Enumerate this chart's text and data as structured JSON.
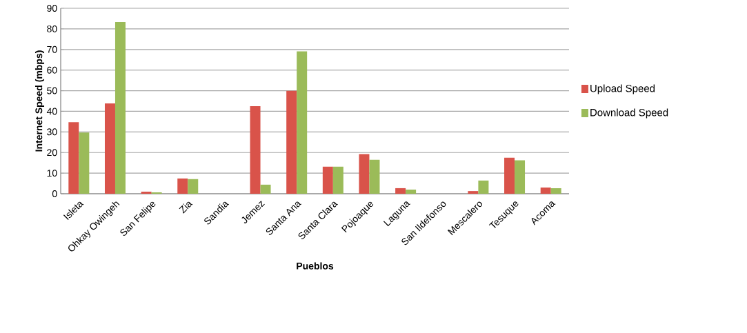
{
  "chart_data": {
    "type": "bar",
    "xlabel": "Pueblos",
    "ylabel": "Internet Speed (mbps)",
    "categories": [
      "Isleta",
      "Ohkay Owingeh",
      "San Felipe",
      "Zia",
      "Sandia",
      "Jemez",
      "Santa Ana",
      "Santa Clara",
      "Pojoaque",
      "Laguna",
      "San Ildefonso",
      "Mescalero",
      "Tesuque",
      "Acoma"
    ],
    "series": [
      {
        "name": "Upload Speed",
        "color": "#d9534a",
        "values": [
          34.7,
          43.8,
          1.0,
          7.4,
          0,
          42.5,
          50,
          13.1,
          19.2,
          2.7,
          0,
          1.3,
          17.5,
          3.0
        ]
      },
      {
        "name": "Download Speed",
        "color": "#9bbb59",
        "values": [
          29.7,
          83.3,
          0.7,
          7.1,
          0,
          4.4,
          69.1,
          13.1,
          16.5,
          2.0,
          0,
          6.4,
          16.2,
          2.7
        ]
      }
    ],
    "ylim": [
      0,
      90
    ],
    "yticks": [
      0,
      10,
      20,
      30,
      40,
      50,
      60,
      70,
      80,
      90
    ],
    "grid": "y",
    "legend": "right"
  }
}
